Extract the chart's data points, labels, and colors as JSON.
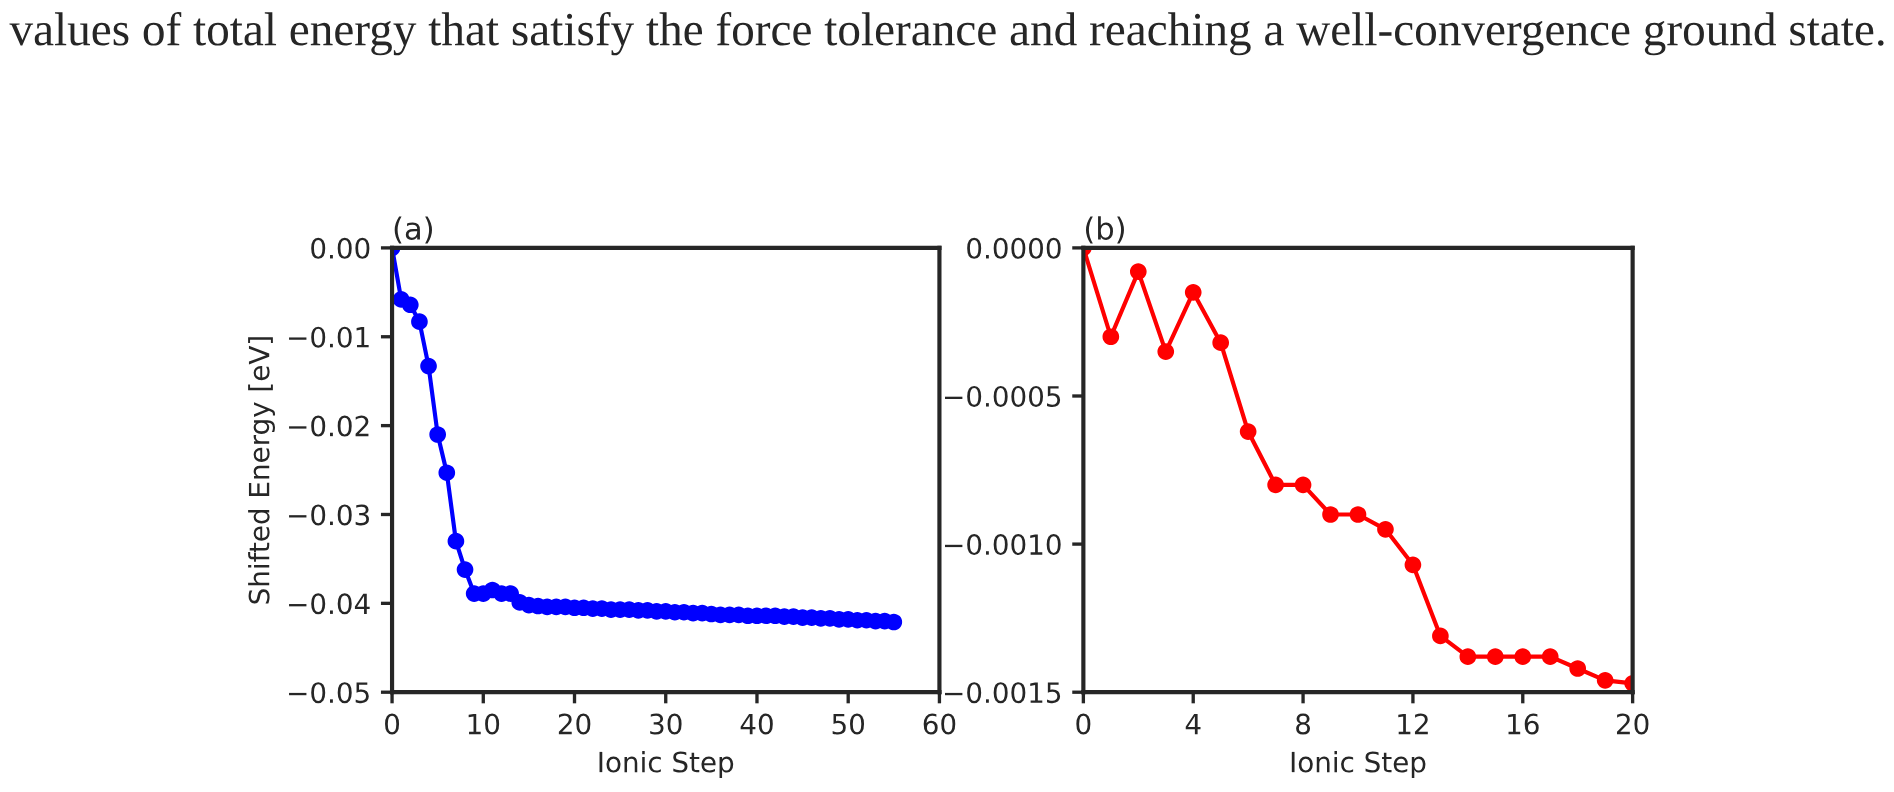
{
  "chart_data": [
    {
      "type": "line",
      "title": "(a)",
      "xlabel": "Ionic Step",
      "ylabel": "Shifted Energy [eV]",
      "annotations": [
        "values of total energy that satisfy the force tolerance and reaching a well-convergence ground state."
      ],
      "x": [
        0,
        1,
        2,
        3,
        4,
        5,
        6,
        7,
        8,
        9,
        10,
        11,
        12,
        13,
        14,
        15,
        16,
        17,
        18,
        19,
        20,
        21,
        22,
        23,
        24,
        25,
        26,
        27,
        28,
        29,
        30,
        31,
        32,
        33,
        34,
        35,
        36,
        37,
        38,
        39,
        40,
        41,
        42,
        43,
        44,
        45,
        46,
        47,
        48,
        49,
        50,
        51,
        52,
        53,
        54,
        55
      ],
      "series": [
        {
          "color": "#0000ff",
          "values": [
            0,
            -0.0058,
            -0.0064,
            -0.0083,
            -0.0133,
            -0.021,
            -0.0253,
            -0.033,
            -0.0362,
            -0.0389,
            -0.0389,
            -0.0385,
            -0.0389,
            -0.0389,
            -0.0399,
            -0.0402,
            -0.0403,
            -0.0404,
            -0.0404,
            -0.0404,
            -0.0405,
            -0.0405,
            -0.0406,
            -0.0406,
            -0.0407,
            -0.0407,
            -0.0407,
            -0.0408,
            -0.0408,
            -0.0409,
            -0.0409,
            -0.041,
            -0.041,
            -0.0411,
            -0.0411,
            -0.0412,
            -0.0413,
            -0.0413,
            -0.0413,
            -0.0414,
            -0.0414,
            -0.0414,
            -0.0414,
            -0.0415,
            -0.0415,
            -0.0416,
            -0.0416,
            -0.0417,
            -0.0417,
            -0.0418,
            -0.0418,
            -0.0419,
            -0.0419,
            -0.042,
            -0.042,
            -0.0421
          ]
        }
      ],
      "marker": "circle",
      "line_style": "solid",
      "xlim": [
        0,
        60
      ],
      "xticks": [
        0,
        10,
        20,
        30,
        40,
        50,
        60
      ],
      "ylim": [
        -0.05,
        0
      ],
      "yticks": [
        {
          "value": -0.05,
          "label": "−0.05"
        },
        {
          "value": -0.04,
          "label": "−0.04"
        },
        {
          "value": -0.03,
          "label": "−0.03"
        },
        {
          "value": -0.02,
          "label": "−0.02"
        },
        {
          "value": -0.01,
          "label": "−0.01"
        },
        {
          "value": 0,
          "label": "0.00"
        }
      ],
      "grid": false
    },
    {
      "type": "line",
      "title": "(b)",
      "xlabel": "Ionic Step",
      "x": [
        0,
        1,
        2,
        3,
        4,
        5,
        6,
        7,
        8,
        9,
        10,
        11,
        12,
        13,
        14,
        15,
        16,
        17,
        18,
        19,
        20
      ],
      "series": [
        {
          "color": "#ff0000",
          "values": [
            0,
            -0.0003,
            -8e-05,
            -0.00035,
            -0.00015,
            -0.00032,
            -0.00062,
            -0.0008,
            -0.0008,
            -0.0009,
            -0.0009,
            -0.00095,
            -0.00107,
            -0.00131,
            -0.00138,
            -0.00138,
            -0.00138,
            -0.00138,
            -0.00142,
            -0.00146,
            -0.00147
          ]
        }
      ],
      "marker": "circle",
      "line_style": "solid",
      "xlim": [
        0,
        20
      ],
      "xticks": [
        0,
        4,
        8,
        12,
        16,
        20
      ],
      "ylim": [
        -0.0015,
        0
      ],
      "yticks": [
        {
          "value": -0.0015,
          "label": "−0.0015"
        },
        {
          "value": -0.001,
          "label": "−0.0010"
        },
        {
          "value": -0.0005,
          "label": "−0.0005"
        },
        {
          "value": 0,
          "label": "0.0000"
        }
      ],
      "grid": false
    }
  ]
}
